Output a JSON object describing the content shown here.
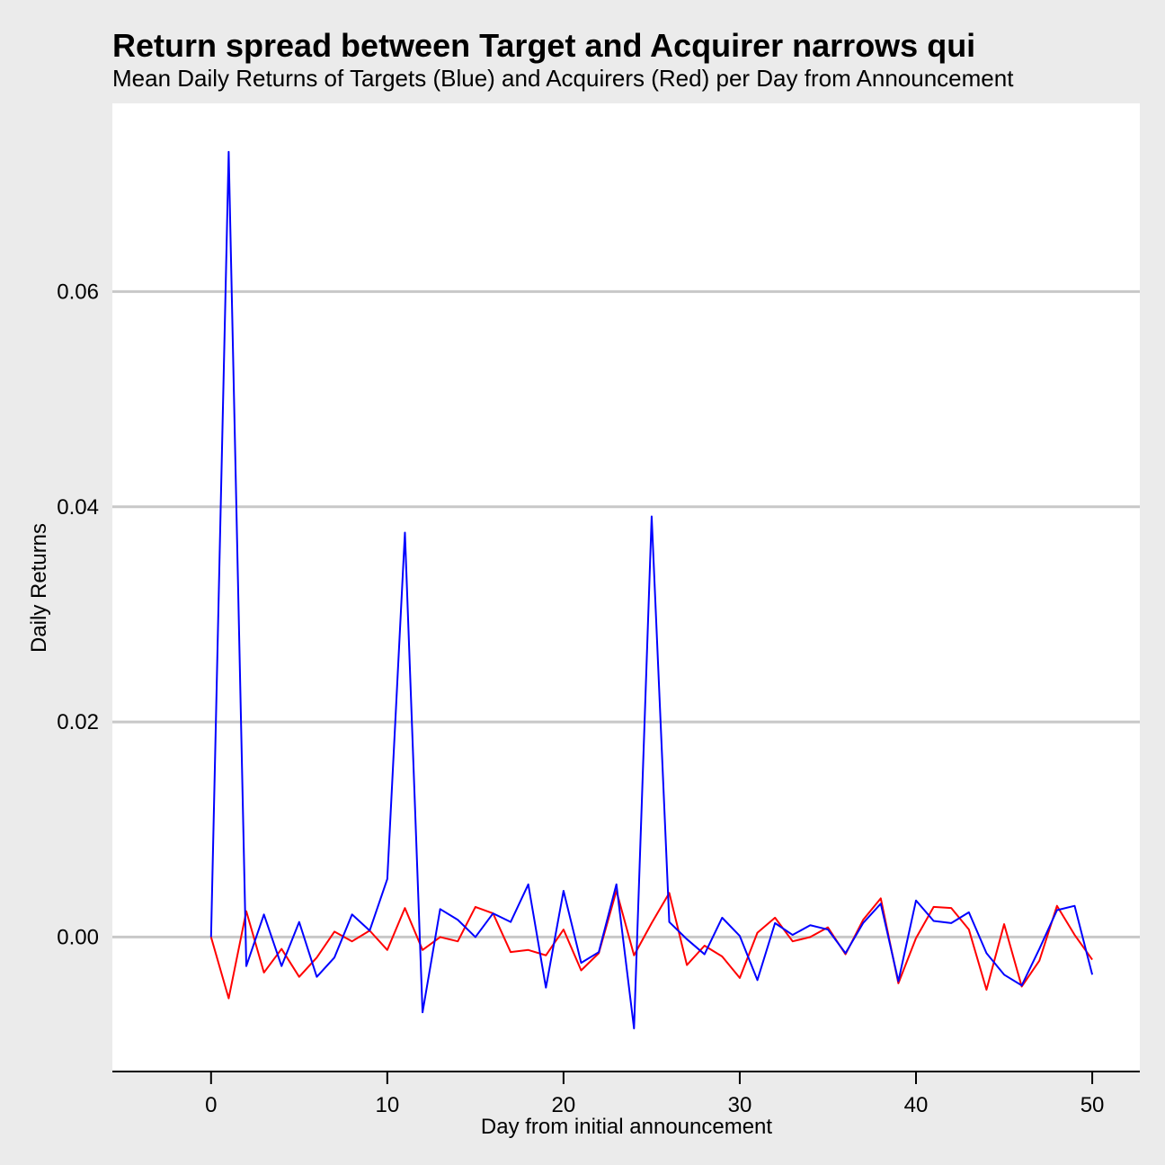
{
  "chart_data": {
    "type": "line",
    "title": "Return spread between Target and Acquirer narrows qui",
    "subtitle": "Mean Daily Returns of Targets (Blue) and Acquirers (Red) per Day from Announcement",
    "xlabel": "Day from initial announcement",
    "ylabel": "Daily Returns",
    "xlim": [
      -5.6,
      52.7
    ],
    "ylim": [
      -0.0125,
      0.0775
    ],
    "x_ticks": [
      0,
      10,
      20,
      30,
      40,
      50
    ],
    "x_tick_labels": [
      "0",
      "10",
      "20",
      "30",
      "40",
      "50"
    ],
    "y_ticks": [
      0.0,
      0.02,
      0.04,
      0.06
    ],
    "y_tick_labels": [
      "0.00",
      "0.02",
      "0.04",
      "0.06"
    ],
    "grid": "horizontal",
    "legend": "none",
    "colors": {
      "background": "#ebebeb",
      "panel": "#ffffff",
      "grid": "#c8c8c8",
      "axis": "#000000",
      "targets": "#0000ff",
      "acquirers": "#ff0000"
    },
    "x": [
      0,
      1,
      2,
      3,
      4,
      5,
      6,
      7,
      8,
      9,
      10,
      11,
      12,
      13,
      14,
      15,
      16,
      17,
      18,
      19,
      20,
      21,
      22,
      23,
      24,
      25,
      26,
      27,
      28,
      29,
      30,
      31,
      32,
      33,
      34,
      35,
      36,
      37,
      38,
      39,
      40,
      41,
      42,
      43,
      44,
      45,
      46,
      47,
      48,
      49,
      50
    ],
    "series": [
      {
        "color": "#0000ff",
        "values": [
          0.0,
          0.073,
          -0.0027,
          0.0021,
          -0.0027,
          0.0014,
          -0.0037,
          -0.0019,
          0.0021,
          0.0006,
          0.0054,
          0.0376,
          -0.007,
          0.0026,
          0.0016,
          0.0,
          0.0022,
          0.0014,
          0.0049,
          -0.0047,
          0.0043,
          -0.0024,
          -0.0014,
          0.0049,
          -0.0085,
          0.0391,
          0.0014,
          -0.0002,
          -0.0016,
          0.0018,
          0.0001,
          -0.004,
          0.0013,
          0.0002,
          0.0011,
          0.0007,
          -0.0015,
          0.0013,
          0.0031,
          -0.0041,
          0.0034,
          0.0015,
          0.0013,
          0.0023,
          -0.0015,
          -0.0035,
          -0.0045,
          -0.0011,
          0.0025,
          0.0029,
          -0.0035
        ]
      },
      {
        "color": "#ff0000",
        "values": [
          0.0,
          -0.0057,
          0.0024,
          -0.0033,
          -0.0011,
          -0.0037,
          -0.0019,
          0.0005,
          -0.0004,
          0.0006,
          -0.0012,
          0.0027,
          -0.0012,
          0.0,
          -0.0004,
          0.0028,
          0.0022,
          -0.0014,
          -0.0012,
          -0.0017,
          0.0007,
          -0.0031,
          -0.0015,
          0.0043,
          -0.0017,
          0.0013,
          0.0041,
          -0.0026,
          -0.0008,
          -0.0018,
          -0.0038,
          0.0004,
          0.0018,
          -0.0004,
          0.0,
          0.0009,
          -0.0016,
          0.0016,
          0.0036,
          -0.0043,
          -0.0001,
          0.0028,
          0.0027,
          0.0007,
          -0.0049,
          0.0012,
          -0.0046,
          -0.0022,
          0.0029,
          0.0002,
          -0.0021
        ]
      }
    ]
  }
}
